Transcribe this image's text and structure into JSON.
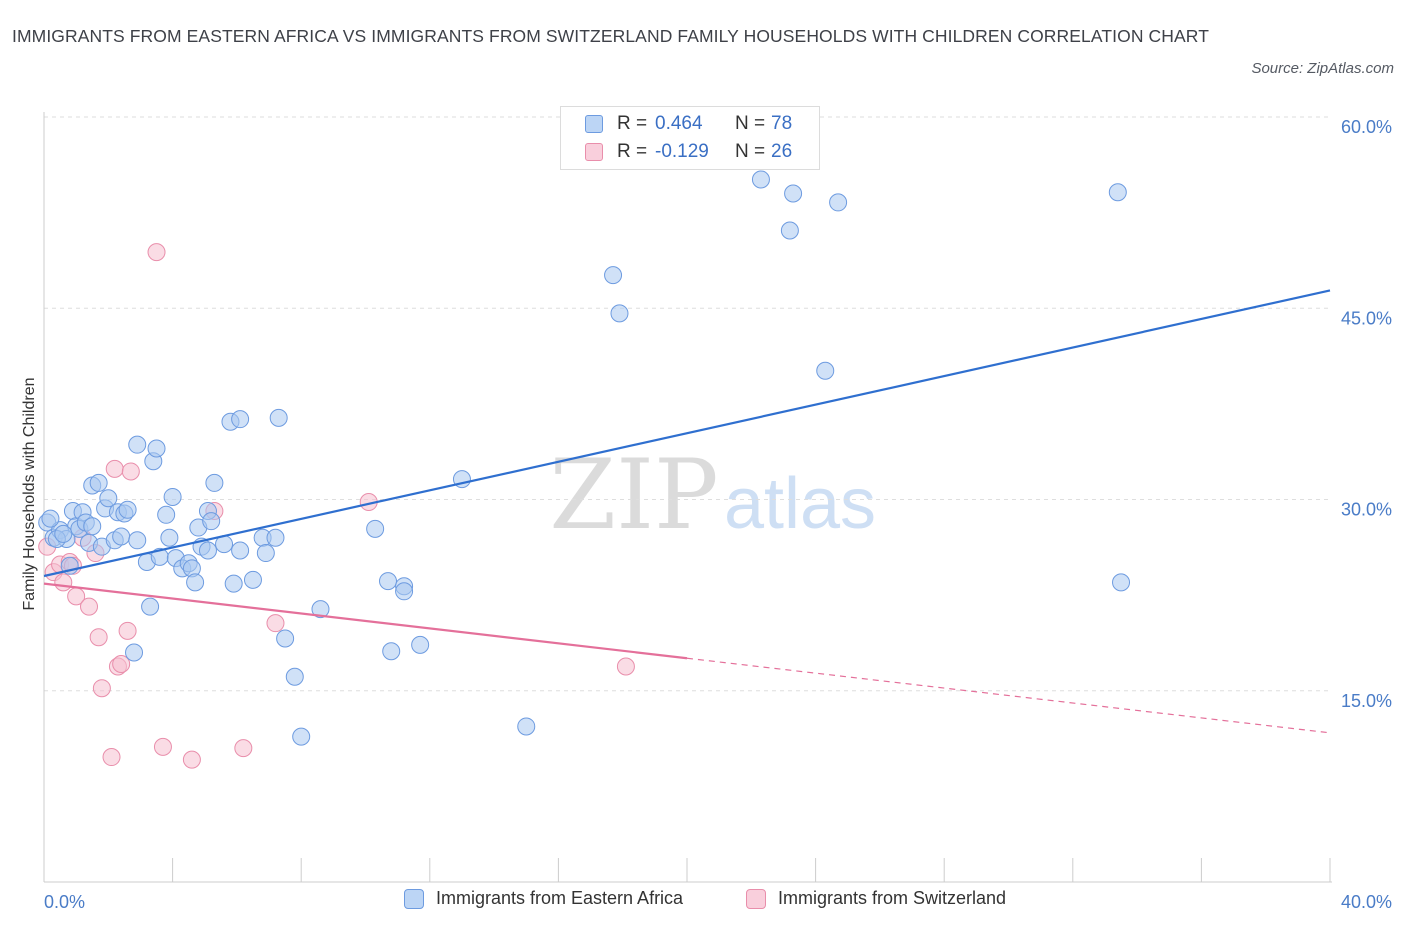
{
  "header": {
    "title": "IMMIGRANTS FROM EASTERN AFRICA VS IMMIGRANTS FROM SWITZERLAND FAMILY HOUSEHOLDS WITH CHILDREN CORRELATION CHART",
    "source": "Source: ZipAtlas.com"
  },
  "colors": {
    "blue_fill": "#a9c8f0",
    "blue_stroke": "#6d9be0",
    "blue_line": "#2f6fcf",
    "pink_fill": "#f6c0d0",
    "pink_stroke": "#e98eab",
    "pink_line": "#e4709a",
    "grid": "#dedede",
    "tick_text": "#4a7cc7"
  },
  "legend_top": {
    "rows": [
      {
        "r_label": "R =",
        "r_value": "0.464",
        "n_label": "N =",
        "n_value": "78"
      },
      {
        "r_label": "R =",
        "r_value": "-0.129",
        "n_label": "N =",
        "n_value": "26"
      }
    ]
  },
  "watermark": {
    "zip": "ZIP",
    "atlas": "atlas"
  },
  "chart_data": {
    "type": "scatter",
    "title": "IMMIGRANTS FROM EASTERN AFRICA VS IMMIGRANTS FROM SWITZERLAND FAMILY HOUSEHOLDS WITH CHILDREN CORRELATION CHART",
    "xlabel": "",
    "ylabel": "Family Households with Children",
    "xlim": [
      0,
      40
    ],
    "ylim": [
      0,
      60
    ],
    "x_tick_labels": [
      "0.0%",
      "40.0%"
    ],
    "y_ticks": [
      15,
      30,
      45,
      60
    ],
    "y_tick_labels": [
      "15.0%",
      "30.0%",
      "45.0%",
      "60.0%"
    ],
    "grid": true,
    "legend_placement": "bottom",
    "series": [
      {
        "name": "Immigrants from Eastern Africa",
        "color": "#a9c8f0",
        "R": 0.464,
        "N": 78,
        "trend": {
          "x": [
            0,
            40
          ],
          "y": [
            24.0,
            46.4
          ]
        },
        "points": [
          [
            0.1,
            28.2
          ],
          [
            0.3,
            27.0
          ],
          [
            0.5,
            27.6
          ],
          [
            0.7,
            26.9
          ],
          [
            0.8,
            24.8
          ],
          [
            0.9,
            29.1
          ],
          [
            1.0,
            27.9
          ],
          [
            1.1,
            27.7
          ],
          [
            1.2,
            29.0
          ],
          [
            1.3,
            28.2
          ],
          [
            1.4,
            26.6
          ],
          [
            1.5,
            27.9
          ],
          [
            1.5,
            31.1
          ],
          [
            1.7,
            31.3
          ],
          [
            1.8,
            26.3
          ],
          [
            1.9,
            29.3
          ],
          [
            2.0,
            30.1
          ],
          [
            2.2,
            26.8
          ],
          [
            2.3,
            29.0
          ],
          [
            2.4,
            27.1
          ],
          [
            2.5,
            28.9
          ],
          [
            2.6,
            29.2
          ],
          [
            2.8,
            18.0
          ],
          [
            2.9,
            34.3
          ],
          [
            2.9,
            26.8
          ],
          [
            3.2,
            25.1
          ],
          [
            3.3,
            21.6
          ],
          [
            3.4,
            33.0
          ],
          [
            3.5,
            34.0
          ],
          [
            3.6,
            25.5
          ],
          [
            3.8,
            28.8
          ],
          [
            3.9,
            27.0
          ],
          [
            4.0,
            30.2
          ],
          [
            4.1,
            25.4
          ],
          [
            4.3,
            24.6
          ],
          [
            4.5,
            25.0
          ],
          [
            4.6,
            24.6
          ],
          [
            4.7,
            23.5
          ],
          [
            4.8,
            27.8
          ],
          [
            4.9,
            26.3
          ],
          [
            5.1,
            26.0
          ],
          [
            5.1,
            29.1
          ],
          [
            5.2,
            28.3
          ],
          [
            5.3,
            31.3
          ],
          [
            5.6,
            26.5
          ],
          [
            5.8,
            36.1
          ],
          [
            5.9,
            23.4
          ],
          [
            6.1,
            36.3
          ],
          [
            6.1,
            26.0
          ],
          [
            6.5,
            23.7
          ],
          [
            6.8,
            27.0
          ],
          [
            6.9,
            25.8
          ],
          [
            7.2,
            27.0
          ],
          [
            7.3,
            36.4
          ],
          [
            7.5,
            19.1
          ],
          [
            7.8,
            16.1
          ],
          [
            8.0,
            11.4
          ],
          [
            8.6,
            21.4
          ],
          [
            10.3,
            27.7
          ],
          [
            10.7,
            23.6
          ],
          [
            10.8,
            18.1
          ],
          [
            11.2,
            23.2
          ],
          [
            11.2,
            22.8
          ],
          [
            11.7,
            18.6
          ],
          [
            13.0,
            31.6
          ],
          [
            15.0,
            12.2
          ],
          [
            17.7,
            47.6
          ],
          [
            17.9,
            44.6
          ],
          [
            22.3,
            55.1
          ],
          [
            23.2,
            51.1
          ],
          [
            23.3,
            54.0
          ],
          [
            24.3,
            40.1
          ],
          [
            24.7,
            53.3
          ],
          [
            33.4,
            54.1
          ],
          [
            33.5,
            23.5
          ],
          [
            0.2,
            28.5
          ],
          [
            0.4,
            26.9
          ],
          [
            0.6,
            27.3
          ]
        ]
      },
      {
        "name": "Immigrants from Switzerland",
        "color": "#f6c0d0",
        "R": -0.129,
        "N": 26,
        "trend": {
          "x": [
            0,
            40
          ],
          "y": [
            23.4,
            11.7
          ],
          "solid_until_x": 20
        },
        "points": [
          [
            0.1,
            26.3
          ],
          [
            0.3,
            24.3
          ],
          [
            0.5,
            24.9
          ],
          [
            0.6,
            23.5
          ],
          [
            0.8,
            25.1
          ],
          [
            0.9,
            24.8
          ],
          [
            1.0,
            22.4
          ],
          [
            1.2,
            27.0
          ],
          [
            1.4,
            21.6
          ],
          [
            1.6,
            25.8
          ],
          [
            1.7,
            19.2
          ],
          [
            1.8,
            15.2
          ],
          [
            2.1,
            9.8
          ],
          [
            2.2,
            32.4
          ],
          [
            2.3,
            16.9
          ],
          [
            2.4,
            17.1
          ],
          [
            2.6,
            19.7
          ],
          [
            2.7,
            32.2
          ],
          [
            3.5,
            49.4
          ],
          [
            3.7,
            10.6
          ],
          [
            4.6,
            9.6
          ],
          [
            5.3,
            29.1
          ],
          [
            6.2,
            10.5
          ],
          [
            7.2,
            20.3
          ],
          [
            10.1,
            29.8
          ],
          [
            18.1,
            16.9
          ]
        ]
      }
    ]
  },
  "legend_bottom": {
    "items": [
      {
        "label": "Immigrants from Eastern Africa"
      },
      {
        "label": "Immigrants from Switzerland"
      }
    ]
  }
}
